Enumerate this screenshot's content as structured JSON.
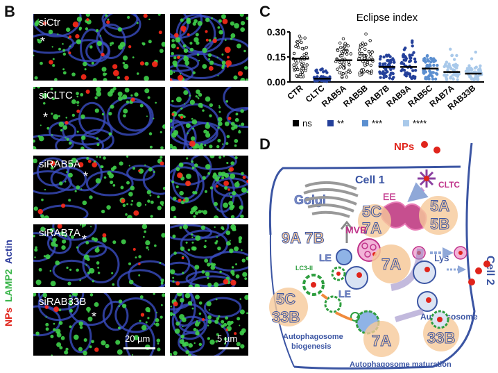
{
  "panel_b": {
    "letter": "B",
    "rows": [
      {
        "label": "siCtr"
      },
      {
        "label": "siCLTC"
      },
      {
        "label": "siRAB5A"
      },
      {
        "label": "siRAB7A"
      },
      {
        "label": "siRAB33B"
      }
    ],
    "star": "*",
    "scale_large": "20 µm",
    "scale_small": "5 µm",
    "side_legend": [
      {
        "text": "NPs",
        "color": "#e0241b"
      },
      {
        "text": "LAMP2",
        "color": "#3ab54a"
      },
      {
        "text": "Actin",
        "color": "#2b3a9b"
      }
    ]
  },
  "panel_c": {
    "letter": "C",
    "significance_legend": [
      {
        "text": "ns",
        "color": "#000000"
      },
      {
        "text": "**",
        "color": "#24409a"
      },
      {
        "text": "***",
        "color": "#5b8fd0"
      },
      {
        "text": "****",
        "color": "#a9c9ea"
      }
    ]
  },
  "chart_data": {
    "type": "scatter",
    "title": "Eclipse index",
    "categories": [
      "CTR",
      "CLTC",
      "RAB5A",
      "RAB5B",
      "RAB7B",
      "RAB9A",
      "RAB5C",
      "RAB7A",
      "RAB33B"
    ],
    "ylim": [
      0,
      0.3
    ],
    "yticks": [
      "0.00",
      "0.15",
      "0.30"
    ],
    "medians": [
      0.14,
      0.02,
      0.13,
      0.13,
      0.09,
      0.09,
      0.08,
      0.06,
      0.05
    ],
    "series_colors": [
      "#000000",
      "#24409a",
      "#000000",
      "#000000",
      "#24409a",
      "#24409a",
      "#5b8fd0",
      "#a9c9ea",
      "#a9c9ea"
    ],
    "marker_fill": [
      "none",
      "filled",
      "none",
      "none",
      "filled",
      "filled",
      "filled",
      "filled",
      "filled"
    ]
  },
  "panel_d": {
    "letter": "D",
    "cell1": "Cell 1",
    "cell2": "Cell 2",
    "nps": "NPs",
    "cltc": "CLTC",
    "golgi": "Golgi",
    "ee": "EE",
    "mvb": "MVB",
    "lys": "Lys",
    "le1": "LE",
    "le2": "LE",
    "lc3": "LC3-II",
    "autolysosome": "Autolysosome",
    "biogenesis": [
      "Autophagosome",
      "biogenesis"
    ],
    "maturation": "Autophagosome maturation",
    "rab_labels": {
      "r9a7b": "9A 7B",
      "r5c7a_top": "5C",
      "r5c7a_bot": "7A",
      "r5a5b_top": "5A",
      "r5a5b_bot": "5B",
      "r7a_mid": "7A",
      "r5c33b_top": "5C",
      "r5c33b_bot": "33B",
      "r7a_bot": "7A",
      "r33b_bot": "33B"
    },
    "colors": {
      "label_blue": "#3b55a3",
      "orange_fill": "#f6c99a",
      "red_np": "#e0241b",
      "green": "#2e9e3f",
      "magenta": "#c0338a"
    }
  }
}
